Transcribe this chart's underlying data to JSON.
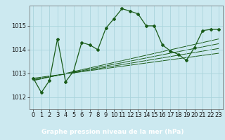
{
  "title": "Graphe pression niveau de la mer (hPa)",
  "bg_color": "#cce9f0",
  "plot_bg_color": "#cce9f0",
  "label_bg_color": "#2d6e2d",
  "line_color": "#1a5c1a",
  "grid_color": "#aad4dc",
  "xlim": [
    -0.5,
    23.5
  ],
  "ylim": [
    1011.5,
    1015.85
  ],
  "yticks": [
    1012,
    1013,
    1014,
    1015
  ],
  "xticks": [
    0,
    1,
    2,
    3,
    4,
    5,
    6,
    7,
    8,
    9,
    10,
    11,
    12,
    13,
    14,
    15,
    16,
    17,
    18,
    19,
    20,
    21,
    22,
    23
  ],
  "main_x": [
    0,
    1,
    2,
    3,
    4,
    5,
    6,
    7,
    8,
    9,
    10,
    11,
    12,
    13,
    14,
    15,
    16,
    17,
    18,
    19,
    20,
    21,
    22,
    23
  ],
  "main_y": [
    1012.8,
    1012.2,
    1012.7,
    1014.45,
    1012.65,
    1013.1,
    1014.3,
    1014.2,
    1014.0,
    1014.9,
    1015.3,
    1015.72,
    1015.62,
    1015.5,
    1015.0,
    1015.0,
    1014.2,
    1013.95,
    1013.8,
    1013.55,
    1014.1,
    1014.8,
    1014.85,
    1014.85
  ],
  "trend_lines": [
    {
      "x0": 0,
      "y0": 1012.8,
      "x1": 23,
      "y1": 1013.85
    },
    {
      "x0": 0,
      "y0": 1012.75,
      "x1": 23,
      "y1": 1014.05
    },
    {
      "x0": 0,
      "y0": 1012.72,
      "x1": 23,
      "y1": 1014.25
    },
    {
      "x0": 0,
      "y0": 1012.7,
      "x1": 23,
      "y1": 1014.45
    }
  ],
  "tick_fontsize": 6,
  "xlabel_fontsize": 6.5
}
